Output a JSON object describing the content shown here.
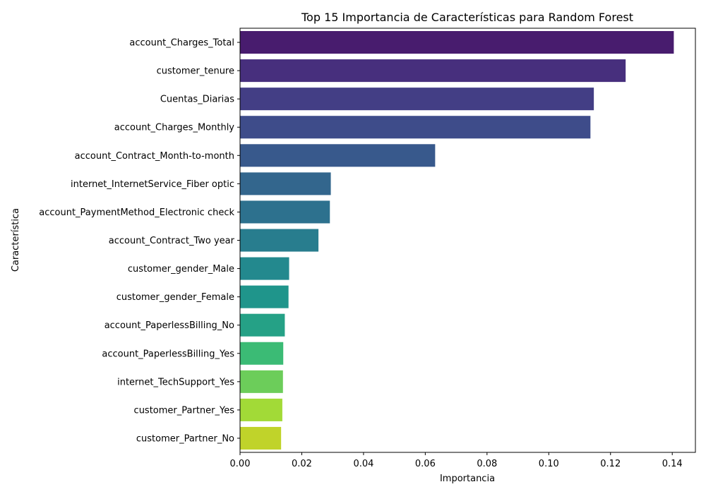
{
  "chart_data": {
    "type": "bar",
    "orientation": "horizontal",
    "title": "Top 15 Importancia de Características para Random Forest",
    "xlabel": "Importancia",
    "ylabel": "Característica",
    "xlim": [
      0,
      0.1475
    ],
    "xticks": [
      "0.00",
      "0.02",
      "0.04",
      "0.06",
      "0.08",
      "0.10",
      "0.12",
      "0.14"
    ],
    "grid": false,
    "palette": "viridis",
    "categories": [
      "account_Charges_Total",
      "customer_tenure",
      "Cuentas_Diarias",
      "account_Charges_Monthly",
      "account_Contract_Month-to-month",
      "internet_InternetService_Fiber optic",
      "account_PaymentMethod_Electronic check",
      "account_Contract_Two year",
      "customer_gender_Male",
      "customer_gender_Female",
      "account_PaperlessBilling_No",
      "account_PaperlessBilling_Yes",
      "internet_TechSupport_Yes",
      "customer_Partner_Yes",
      "customer_Partner_No"
    ],
    "values": [
      0.1405,
      0.1249,
      0.1146,
      0.1135,
      0.0632,
      0.0294,
      0.0291,
      0.0254,
      0.0159,
      0.0157,
      0.0145,
      0.014,
      0.0139,
      0.0137,
      0.0133
    ],
    "colors": [
      "#481c6e",
      "#472f7d",
      "#433e85",
      "#3e4c8a",
      "#38598c",
      "#33668d",
      "#2d718e",
      "#287d8e",
      "#23898e",
      "#1f958b",
      "#25a186",
      "#3bbb75",
      "#6ccd5a",
      "#a2da37",
      "#c0d32a"
    ]
  }
}
